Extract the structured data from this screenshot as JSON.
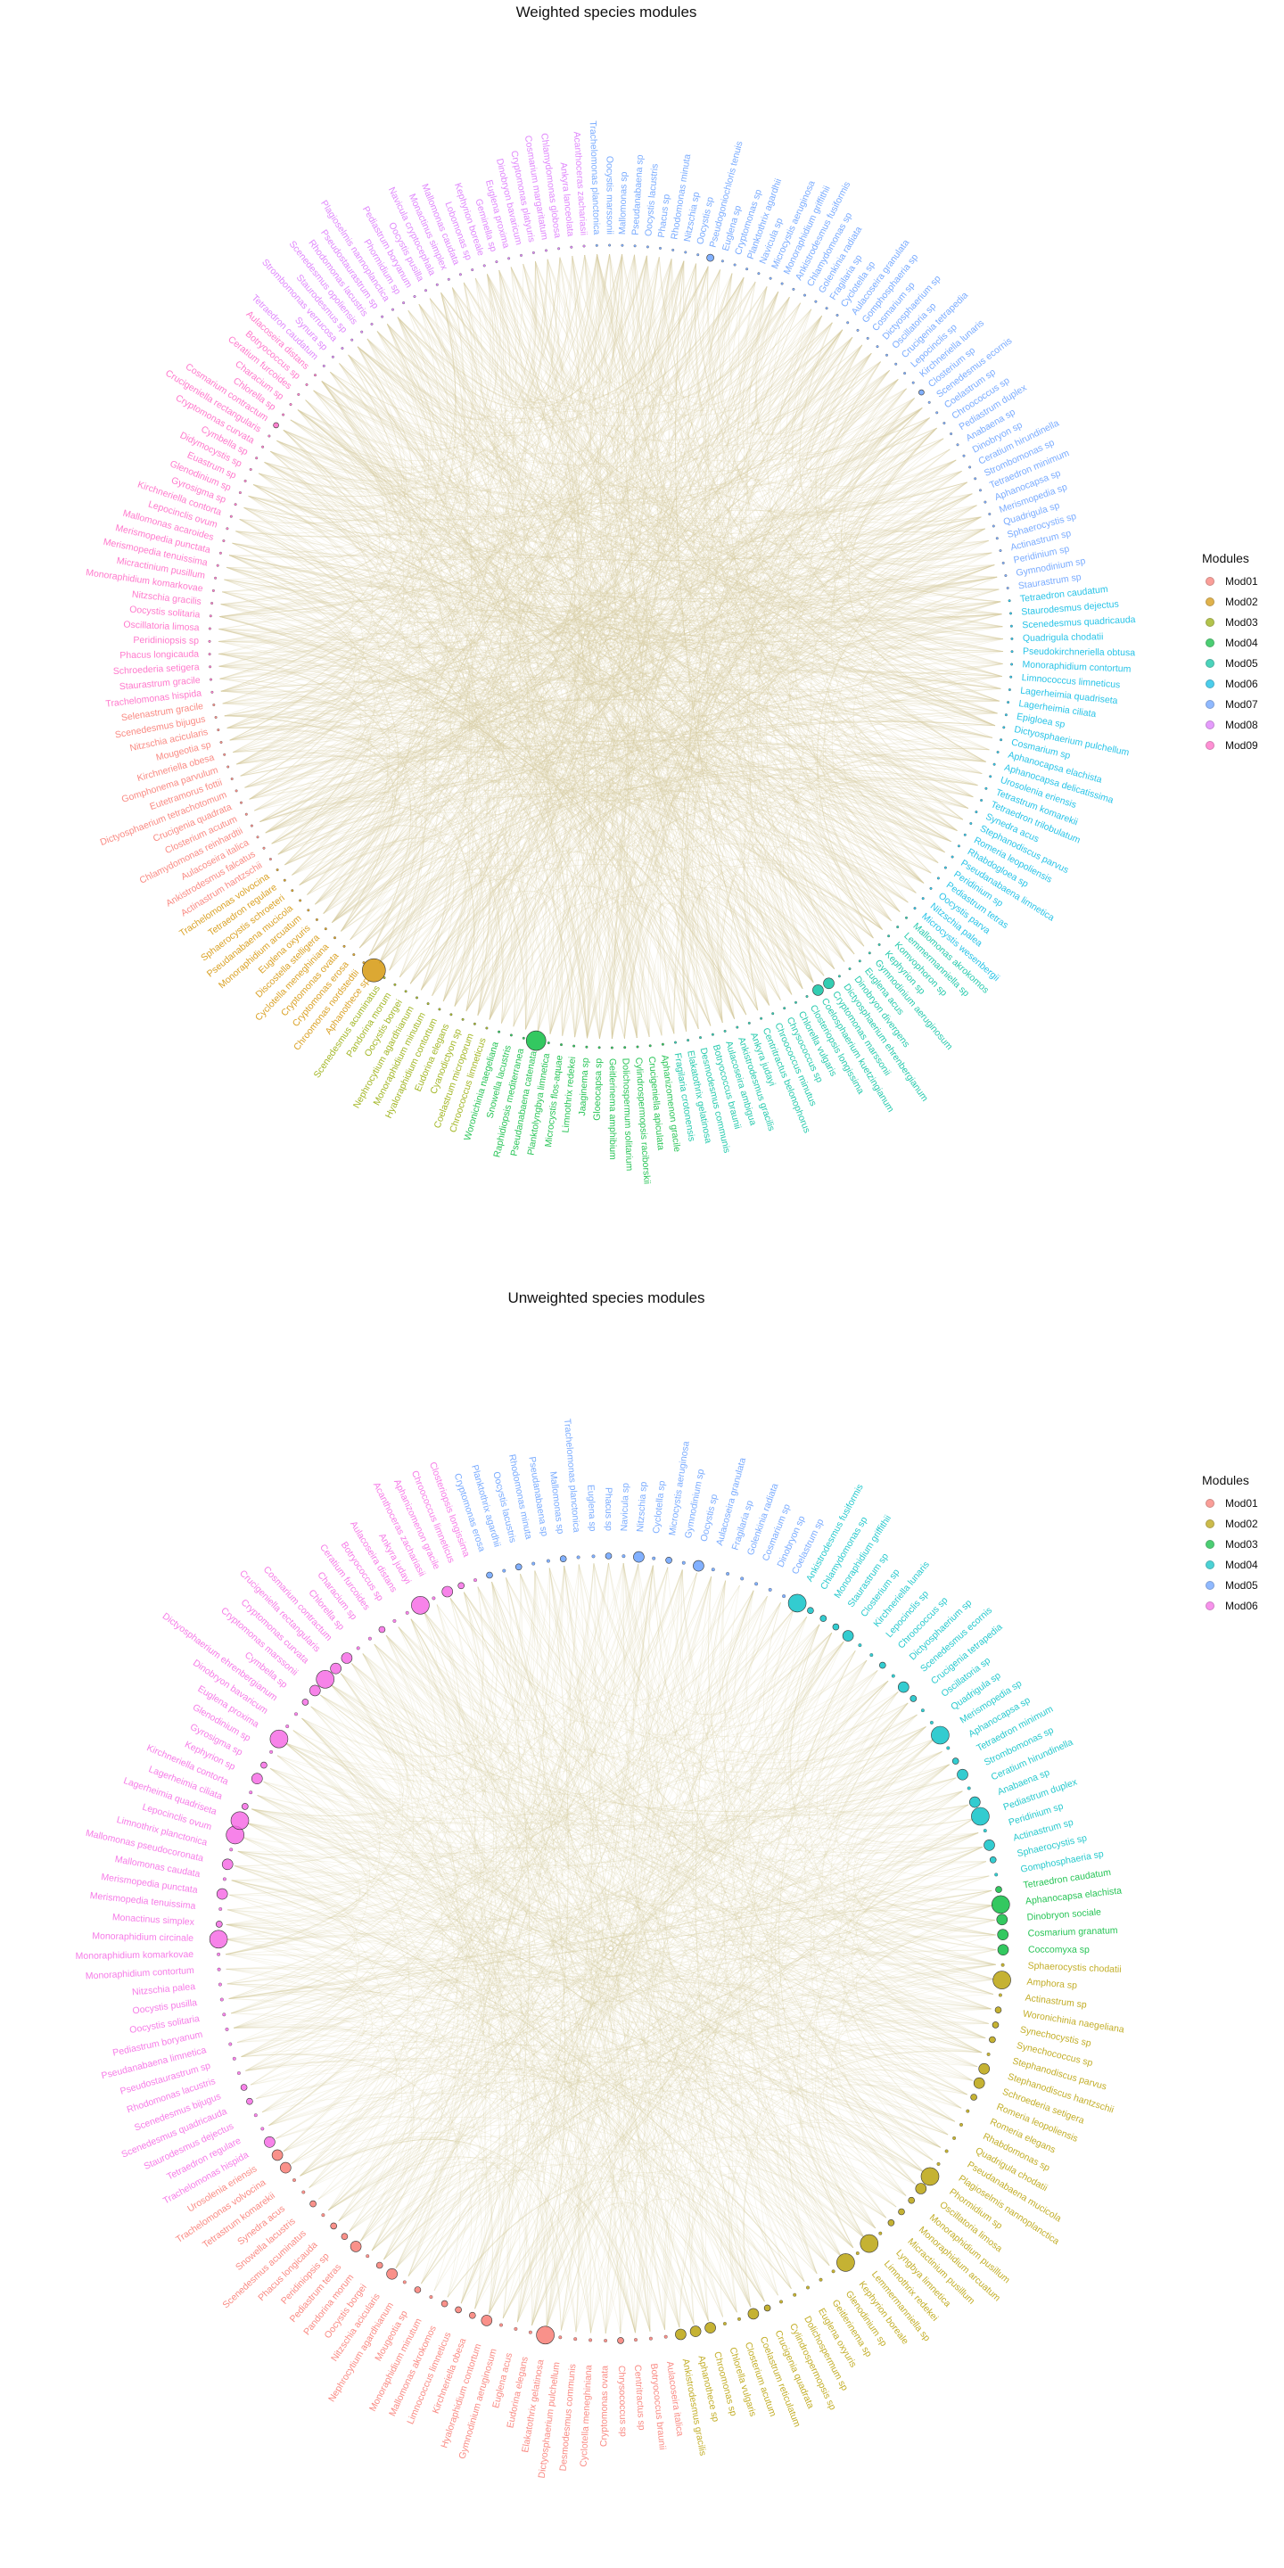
{
  "chart_data": [
    {
      "type": "chord",
      "title": "Weighted species modules",
      "legend_title": "Modules",
      "legend_position": "right",
      "modules": [
        {
          "name": "Mod01",
          "color": "#F8766D"
        },
        {
          "name": "Mod02",
          "color": "#D39200"
        },
        {
          "name": "Mod03",
          "color": "#93AA00"
        },
        {
          "name": "Mod04",
          "color": "#00BA38"
        },
        {
          "name": "Mod05",
          "color": "#00C19F"
        },
        {
          "name": "Mod06",
          "color": "#00B9E3"
        },
        {
          "name": "Mod07",
          "color": "#619CFF"
        },
        {
          "name": "Mod08",
          "color": "#DB72FB"
        },
        {
          "name": "Mod09",
          "color": "#FF61C3"
        }
      ],
      "edge_color": "#D8CBA0",
      "groups": [
        {
          "module": 7,
          "species": [
            "Trachelomonas planctonica",
            "Oocystis marssonii",
            "Mallomonas sp",
            "Pseudanabaena sp",
            "Oocystis lacustris",
            "Phacus sp",
            "Rhodomonas minuta",
            "Nitzschia sp",
            "Oocystis sp",
            "Pseudogoniochloris tenuis",
            "Euglena sp",
            "Cryptomonas sp",
            "Planktothrix agardhii",
            "Navicula sp",
            "Microcystis aeruginosa",
            "Monoraphidium griffithii",
            "Ankistrodesmus fusiformis",
            "Chlamydomonas sp",
            "Golenkinia radiata",
            "Fragilaria sp",
            "Cyclotella sp",
            "Aulacoseira granulata",
            "Gomphosphaeria sp",
            "Cosmarium sp",
            "Dictyosphaerium sp",
            "Oscillatoria sp",
            "Crucigenia tetrapedia",
            "Lepocinclis sp",
            "Kirchneriella lunaris",
            "Closterium sp",
            "Scenedesmus ecornis",
            "Coelastrum sp",
            "Chroococcus sp",
            "Pediastrum duplex",
            "Anabaena sp",
            "Dinobryon sp",
            "Ceratium hirundinella",
            "Strombomonas sp",
            "Tetraedron minimum",
            "Aphanocapsa sp",
            "Merismopedia sp",
            "Quadrigula sp",
            "Sphaerocystis sp",
            "Actinastrum sp",
            "Peridinium sp",
            "Gymnodinium sp",
            "Staurastrum sp"
          ]
        },
        {
          "module": 6,
          "species": [
            "Tetraedron caudatum",
            "Staurodesmus dejectus",
            "Scenedesmus quadricauda",
            "Quadrigula chodatii",
            "Pseudokirchneriella obtusa",
            "Monoraphidium contortum",
            "Limnococcus limneticus",
            "Lagerheimia quadriseta",
            "Lagerheimia ciliata",
            "Epigloea sp",
            "Dictyosphaerium pulchellum",
            "Cosmarium sp",
            "Aphanocapsa elachista",
            "Aphanocapsa delicatissima",
            "Urosolenia eriensis",
            "Tetrastrum komarekii",
            "Tetraedron trilobulatum",
            "Synedra acus",
            "Stephanodiscus parvus",
            "Romeria leopoliensis",
            "Rhabdogloea sp",
            "Pseudanabaena limnetica",
            "Peridinium sp",
            "Pediastrum tetras",
            "Oocystis parva",
            "Nitzschia palea",
            "Microcystis wesenbergii"
          ]
        },
        {
          "module": 5,
          "species": [
            "Mallomonas akrokomos",
            "Lemmermanniella sp",
            "Komvophoron sp",
            "Kephyrion sp",
            "Gymnodinium aeruginosum",
            "Euglena acus",
            "Dinobryon divergens",
            "Dictyosphaerium ehrenbergianum",
            "Cryptomonas marssonii",
            "Coelosphaerium kuetzingianum",
            "Closteriopsis longissima",
            "Chlorella vulgaris",
            "Chrysococcus sp",
            "Chroococcus minutus",
            "Centritractus belonophorus",
            "Ankyra judayi",
            "Ankistrodesmus gracilis",
            "Aulacoseira ambigua",
            "Botryococcus braunii",
            "Desmodesmus communis",
            "Elakatothrix gelatinosa",
            "Fragilaria crotonensis"
          ]
        },
        {
          "module": 4,
          "species": [
            "Aphanizomenon gracile",
            "Crucigeniella apiculata",
            "Cylindrospermopsis raciborskii",
            "Dolichospermum solitarium",
            "Geitlerinema amphibium",
            "Gloeocapsa sp",
            "Jaaginema sp",
            "Limnothrix redekei",
            "Microcystis flos-aquae",
            "Planktolyngbya limnetica",
            "Pseudanabaena catenata",
            "Raphidiopsis mediterranea",
            "Snowella lacustris",
            "Woronichinia naegeliana"
          ]
        },
        {
          "module": 3,
          "species": [
            "Chroococcus limneticus",
            "Coelastrum microporum",
            "Cyanodictyon sp",
            "Eudorina elegans",
            "Hyaloraphidium contortum",
            "Monoraphidium minutum",
            "Nephrocytium agardhianum",
            "Oocystis borgei",
            "Pandorina morum",
            "Scenedesmus acuminatus"
          ]
        },
        {
          "module": 2,
          "species": [
            "Aphanothece sp",
            "Chroomonas nordstedtii",
            "Cryptomonas erosa",
            "Cryptomonas ovata",
            "Cyclotella meneghiniana",
            "Discostella stelligera",
            "Euglena oxyuris",
            "Monoraphidium arcuatum",
            "Pseudanabaena mucicola",
            "Sphaerocystis schroeteri",
            "Tetraedron regulare",
            "Trachelomonas volvocina"
          ]
        },
        {
          "module": 1,
          "species": [
            "Actinastrum hantzschii",
            "Ankistrodesmus falcatus",
            "Aulacoseira italica",
            "Chlamydomonas reinhardtii",
            "Closterium acutum",
            "Crucigenia quadrata",
            "Dictyosphaerium tetrachotomum",
            "Eutetramorus fottii",
            "Gomphonema parvulum",
            "Kirchneriella obesa",
            "Mougeotia sp",
            "Nitzschia acicularis",
            "Scenedesmus bijugus",
            "Selenastrum gracile"
          ]
        },
        {
          "module": 9,
          "species": [
            "Trachelomonas hispida",
            "Staurastrum gracile",
            "Schroederia setigera",
            "Phacus longicauda",
            "Peridiniopsis sp",
            "Oscillatoria limosa",
            "Oocystis solitaria",
            "Nitzschia gracilis",
            "Monoraphidium komarkovae",
            "Micractinium pusillum",
            "Merismopedia tenuissima",
            "Merismopedia punctata",
            "Mallomonas acaroides",
            "Lepocinclis ovum",
            "Kirchneriella contorta",
            "Gyrosigma sp",
            "Glenodinium sp",
            "Euastrum sp",
            "Didymocystis sp",
            "Cymbella sp",
            "Cryptomonas curvata",
            "Crucigeniella rectangularis",
            "Cosmarium contractum",
            "Chlorella sp",
            "Characium sp",
            "Ceratium furcoides",
            "Botryococcus sp",
            "Aulacoseira distans"
          ]
        },
        {
          "module": 8,
          "species": [
            "Tetraedron caudatum",
            "Synura sp",
            "Strombomonas verrucosa",
            "Staurodesmus sp",
            "Scenedesmus opoliensis",
            "Rhodomonas lacustris",
            "Pseudostaurastrum sp",
            "Plagioselmis nannoplanctica",
            "Phormidium sp",
            "Pediastrum boryanum",
            "Oocystis pusilla",
            "Navicula cryptocephala",
            "Monactinus simplex",
            "Mallomonas caudata",
            "Lobomonas sp",
            "Kephyrion boreale",
            "Geminella sp",
            "Euglena proxima",
            "Dinobryon bavaricum",
            "Cryptomonas platyuris",
            "Cosmarium margaritatum",
            "Chlamydomonas globosa",
            "Ankyra lanceolata",
            "Acanthoceras zachariasii"
          ]
        }
      ]
    },
    {
      "type": "chord",
      "title": "Unweighted species modules",
      "legend_title": "Modules",
      "legend_position": "right",
      "modules": [
        {
          "name": "Mod01",
          "color": "#F8766D"
        },
        {
          "name": "Mod02",
          "color": "#B79F00"
        },
        {
          "name": "Mod03",
          "color": "#00BA38"
        },
        {
          "name": "Mod04",
          "color": "#00BFC4"
        },
        {
          "name": "Mod05",
          "color": "#619CFF"
        },
        {
          "name": "Mod06",
          "color": "#F564E3"
        }
      ],
      "edge_color": "#D8CBA0",
      "groups": [
        {
          "module": 5,
          "species": [
            "Cryptomonas erosa",
            "Planktothrix agardhii",
            "Oocystis lacustris",
            "Rhodomonas minuta",
            "Pseudanabaena sp",
            "Mallomonas sp",
            "Trachelomonas planctonica",
            "Euglena sp",
            "Phacus sp",
            "Navicula sp",
            "Nitzschia sp",
            "Cyclotella sp",
            "Microcystis aeruginosa",
            "Gymnodinium sp",
            "Oocystis sp",
            "Aulacoseira granulata",
            "Fragilaria sp",
            "Golenkinia radiata",
            "Cosmarium sp",
            "Dinobryon sp",
            "Coelastrum sp"
          ]
        },
        {
          "module": 4,
          "species": [
            "Ankistrodesmus fusiformis",
            "Chlamydomonas sp",
            "Monoraphidium griffithii",
            "Staurastrum sp",
            "Closterium sp",
            "Kirchneriella lunaris",
            "Lepocinclis sp",
            "Chroococcus sp",
            "Dictyosphaerium sp",
            "Scenedesmus ecornis",
            "Crucigenia tetrapedia",
            "Oscillatoria sp",
            "Quadrigula sp",
            "Merismopedia sp",
            "Aphanocapsa sp",
            "Tetraedron minimum",
            "Strombomonas sp",
            "Ceratium hirundinella",
            "Anabaena sp",
            "Pediastrum duplex",
            "Peridinium sp",
            "Actinastrum sp",
            "Sphaerocystis sp",
            "Gomphosphaeria sp"
          ]
        },
        {
          "module": 3,
          "species": [
            "Tetraedron caudatum",
            "Aphanocapsa elachista",
            "Dinobryon sociale",
            "Cosmarium granatum",
            "Coccomyxa sp"
          ]
        },
        {
          "module": 2,
          "species": [
            "Sphaerocystis chodatii",
            "Amphora sp",
            "Actinastrum sp",
            "Woronichinia naegeliana",
            "Synechocystis sp",
            "Synechococcus sp",
            "Stephanodiscus parvus",
            "Stephanodiscus hantzschii",
            "Schroederia setigera",
            "Romeria leopoliensis",
            "Romeria elegans",
            "Rhabdomonas sp",
            "Quadrigula chodatii",
            "Pseudanabaena mucicola",
            "Plagioselmis nannoplanctica",
            "Phormidium sp",
            "Oscillatoria limosa",
            "Monoraphidium pusillum",
            "Monoraphidium arcuatum",
            "Micractinium pusillum",
            "Lyngbya limnetica",
            "Limnothrix redekei",
            "Lemmermanniella sp",
            "Kephyrion boreale",
            "Glenodinium sp",
            "Geitlerinema sp",
            "Euglena oxyuris",
            "Dolichospermum sp",
            "Cylindrospermopsis sp",
            "Crucigenia quadrata",
            "Coelastrum reticulatum",
            "Closterium acutum",
            "Chlorella vulgaris",
            "Chroomonas sp",
            "Aphanothece sp",
            "Ankistrodesmus gracilis"
          ]
        },
        {
          "module": 1,
          "species": [
            "Aulacoseira italica",
            "Botryococcus braunii",
            "Centritractus sp",
            "Chrysococcus sp",
            "Cryptomonas ovata",
            "Cyclotella meneghiniana",
            "Desmodesmus communis",
            "Dictyosphaerium pulchellum",
            "Elakatothrix gelatinosa",
            "Eudorina elegans",
            "Euglena acus",
            "Gymnodinium aeruginosum",
            "Hyaloraphidium contortum",
            "Kirchneriella obesa",
            "Limnococcus limneticus",
            "Mallomonas akrokomos",
            "Monoraphidium minutum",
            "Mougeotia sp",
            "Nephrocytium agardhianum",
            "Nitzschia acicularis",
            "Oocystis borgei",
            "Pandorina morum",
            "Pediastrum tetras",
            "Peridiniopsis sp",
            "Phacus longicauda",
            "Scenedesmus acuminatus",
            "Snowella lacustris",
            "Synedra acus",
            "Tetrastrum komarekii",
            "Trachelomonas volvocina",
            "Urosolenia eriensis"
          ]
        },
        {
          "module": 6,
          "species": [
            "Trachelomonas hispida",
            "Tetraedron regulare",
            "Staurodesmus dejectus",
            "Scenedesmus quadricauda",
            "Scenedesmus bijugus",
            "Rhodomonas lacustris",
            "Pseudostaurastrum sp",
            "Pseudanabaena limnetica",
            "Pediastrum boryanum",
            "Oocystis solitaria",
            "Oocystis pusilla",
            "Nitzschia palea",
            "Monoraphidium contortum",
            "Monoraphidium komarkovae",
            "Monoraphidium circinale",
            "Monactinus simplex",
            "Merismopedia tenuissima",
            "Merismopedia punctata",
            "Mallomonas caudata",
            "Mallomonas pseudocoronata",
            "Limnothrix planctonica",
            "Lepocinclis ovum",
            "Lagerheimia quadriseta",
            "Lagerheimia ciliata",
            "Kirchneriella contorta",
            "Kephyrion sp",
            "Gyrosigma sp",
            "Glenodinium sp",
            "Euglena proxima",
            "Dinobryon bavaricum",
            "Dictyosphaerium ehrenbergianum",
            "Cymbella sp",
            "Cryptomonas marssonii",
            "Cryptomonas curvata",
            "Crucigeniella rectangularis",
            "Cosmarium contractum",
            "Chlorella sp",
            "Characium sp",
            "Ceratium furcoides",
            "Botryococcus sp",
            "Aulacoseira distans",
            "Ankyra judayi",
            "Acanthoceras zachariasii",
            "Aphanizomenon gracile",
            "Chroococcus limneticus",
            "Closteriopsis longissima"
          ]
        }
      ]
    }
  ]
}
